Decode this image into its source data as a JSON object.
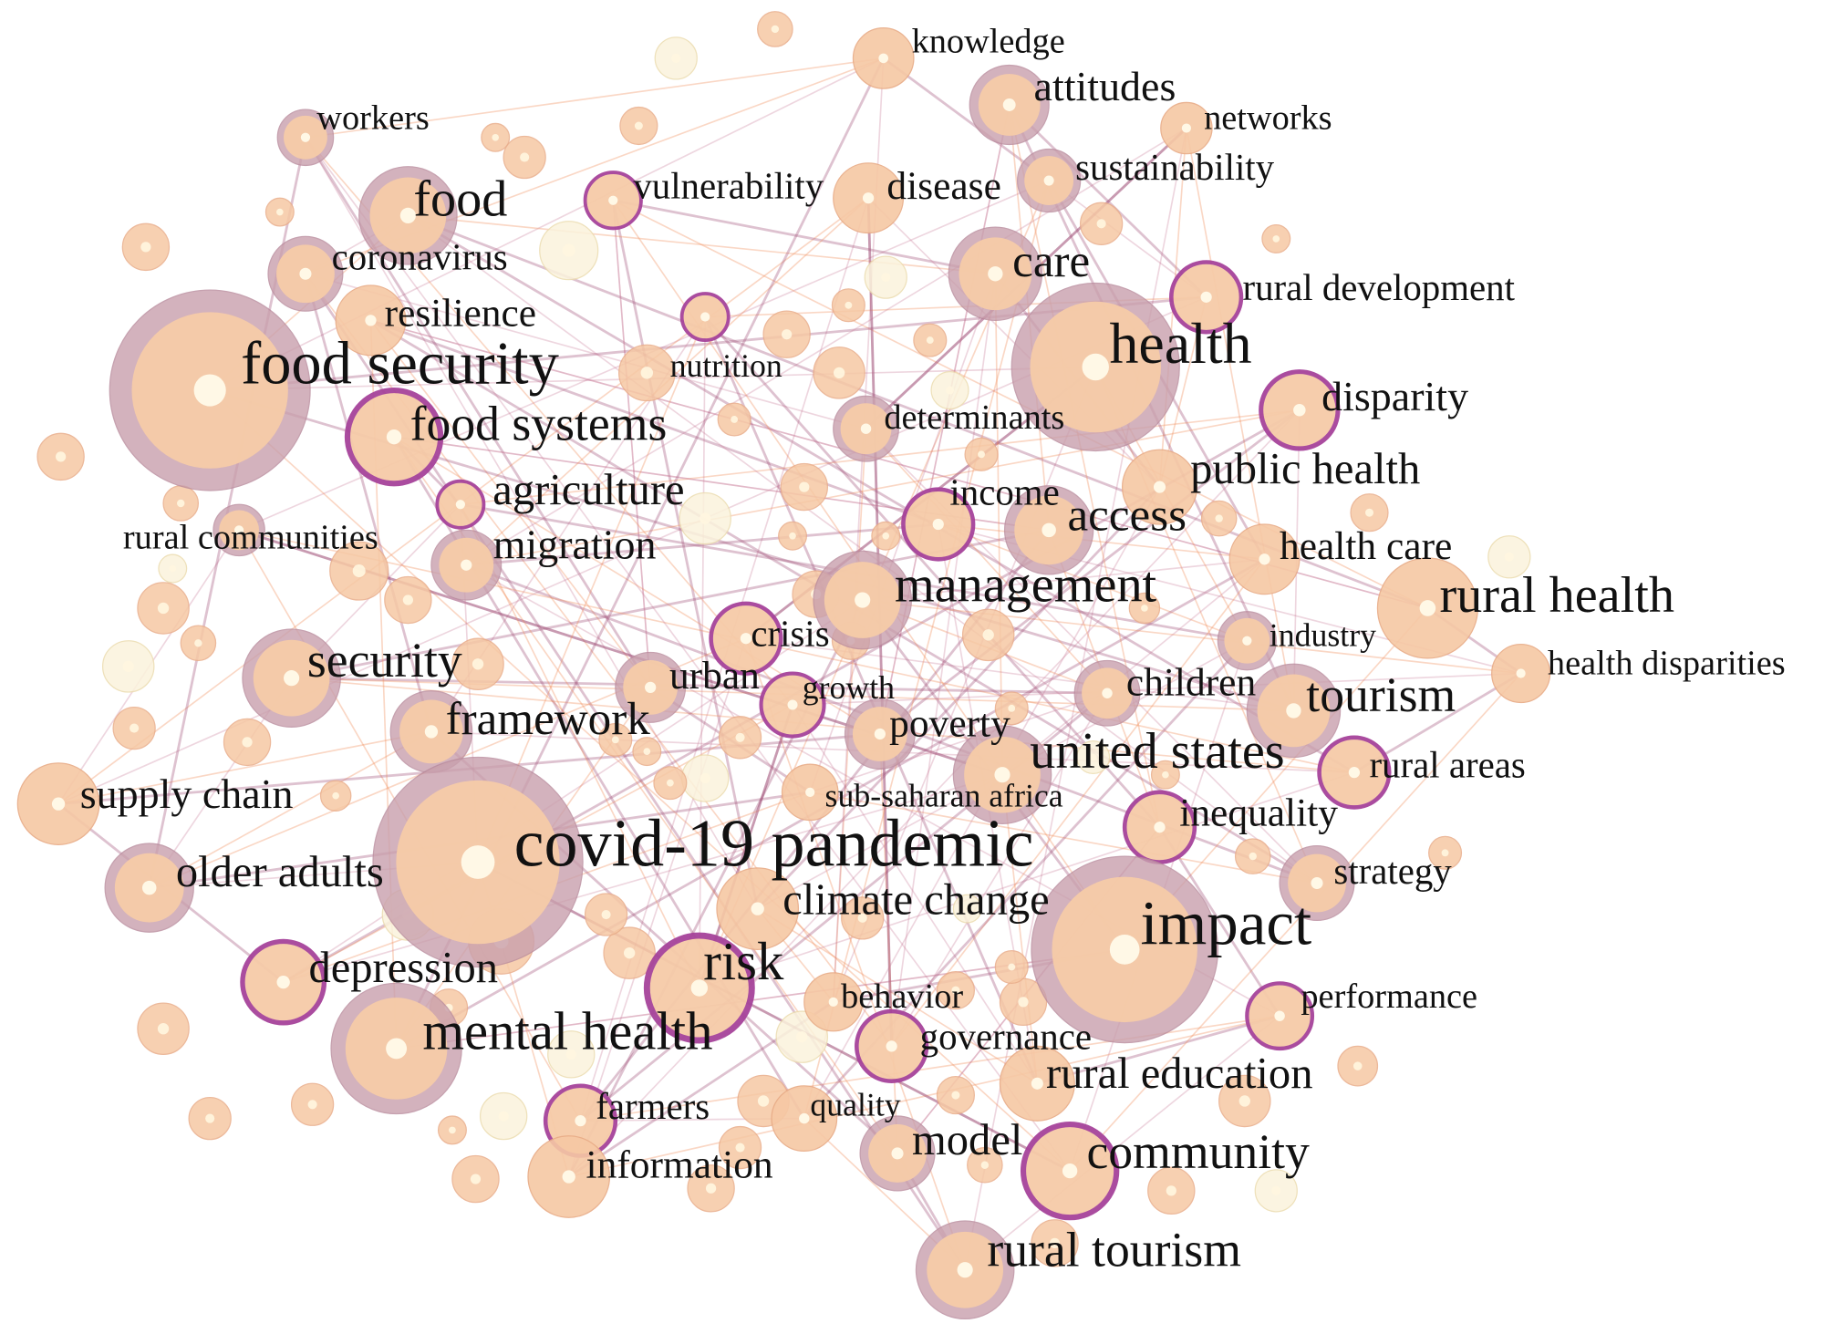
{
  "nodes": [
    {
      "label": "knowledge"
    },
    {
      "label": "attitudes"
    },
    {
      "label": "networks"
    },
    {
      "label": "sustainability"
    },
    {
      "label": "workers"
    },
    {
      "label": "food"
    },
    {
      "label": "vulnerability"
    },
    {
      "label": "disease"
    },
    {
      "label": "coronavirus"
    },
    {
      "label": "care"
    },
    {
      "label": "rural development"
    },
    {
      "label": "resilience"
    },
    {
      "label": "health"
    },
    {
      "label": "food security"
    },
    {
      "label": "nutrition"
    },
    {
      "label": "disparity"
    },
    {
      "label": "food systems"
    },
    {
      "label": "determinants"
    },
    {
      "label": "public health"
    },
    {
      "label": "agriculture"
    },
    {
      "label": "income"
    },
    {
      "label": "access"
    },
    {
      "label": "rural communities"
    },
    {
      "label": "migration"
    },
    {
      "label": "health care"
    },
    {
      "label": "management"
    },
    {
      "label": "rural health"
    },
    {
      "label": "crisis"
    },
    {
      "label": "industry"
    },
    {
      "label": "health disparities"
    },
    {
      "label": "security"
    },
    {
      "label": "urban"
    },
    {
      "label": "growth"
    },
    {
      "label": "children"
    },
    {
      "label": "tourism"
    },
    {
      "label": "framework"
    },
    {
      "label": "poverty"
    },
    {
      "label": "united states"
    },
    {
      "label": "rural areas"
    },
    {
      "label": "supply chain"
    },
    {
      "label": "sub-saharan africa"
    },
    {
      "label": "inequality"
    },
    {
      "label": "covid-19 pandemic"
    },
    {
      "label": "older adults"
    },
    {
      "label": "strategy"
    },
    {
      "label": "climate change"
    },
    {
      "label": "impact"
    },
    {
      "label": "risk"
    },
    {
      "label": "depression"
    },
    {
      "label": "behavior"
    },
    {
      "label": "performance"
    },
    {
      "label": "mental health"
    },
    {
      "label": "governance"
    },
    {
      "label": "rural education"
    },
    {
      "label": "farmers"
    },
    {
      "label": "quality"
    },
    {
      "label": "model"
    },
    {
      "label": "community"
    },
    {
      "label": "information"
    },
    {
      "label": "rural tourism"
    }
  ]
}
